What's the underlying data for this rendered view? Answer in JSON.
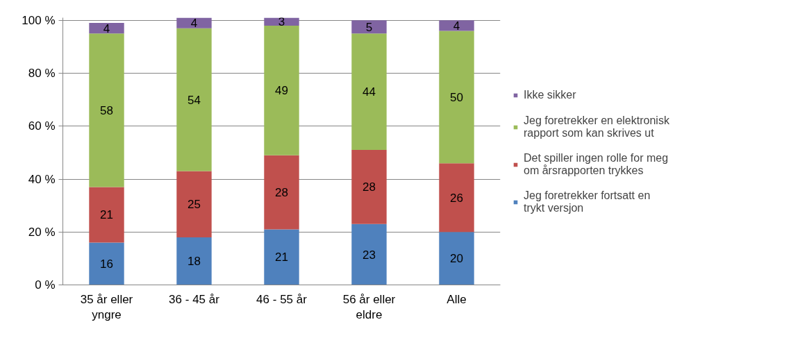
{
  "chart_data": {
    "type": "bar",
    "stacked": true,
    "categories": [
      "35 år eller yngre",
      "36 - 45 år",
      "46 - 55 år",
      "56 år eller eldre",
      "Alle"
    ],
    "series": [
      {
        "name": "Jeg foretrekker fortsatt en trykt versjon",
        "color": "#4f81bd",
        "values": [
          16,
          18,
          21,
          23,
          20
        ]
      },
      {
        "name": "Det spiller ingen rolle for meg om årsrapporten trykkes",
        "color": "#c0504d",
        "values": [
          21,
          25,
          28,
          28,
          26
        ]
      },
      {
        "name": "Jeg foretrekker en elektronisk rapport som kan skrives ut",
        "color": "#9bbb59",
        "values": [
          58,
          54,
          49,
          44,
          50
        ]
      },
      {
        "name": "Ikke sikker",
        "color": "#8064a2",
        "values": [
          4,
          4,
          3,
          5,
          4
        ]
      }
    ],
    "ylim": [
      0,
      101
    ],
    "yticks": [
      {
        "value": 0,
        "label": "0 %"
      },
      {
        "value": 20,
        "label": "20 %"
      },
      {
        "value": 40,
        "label": "40 %"
      },
      {
        "value": 60,
        "label": "60 %"
      },
      {
        "value": 80,
        "label": "80 %"
      },
      {
        "value": 100,
        "label": "100 %"
      }
    ],
    "grid": "y",
    "legend": "right",
    "data_labels": true
  }
}
